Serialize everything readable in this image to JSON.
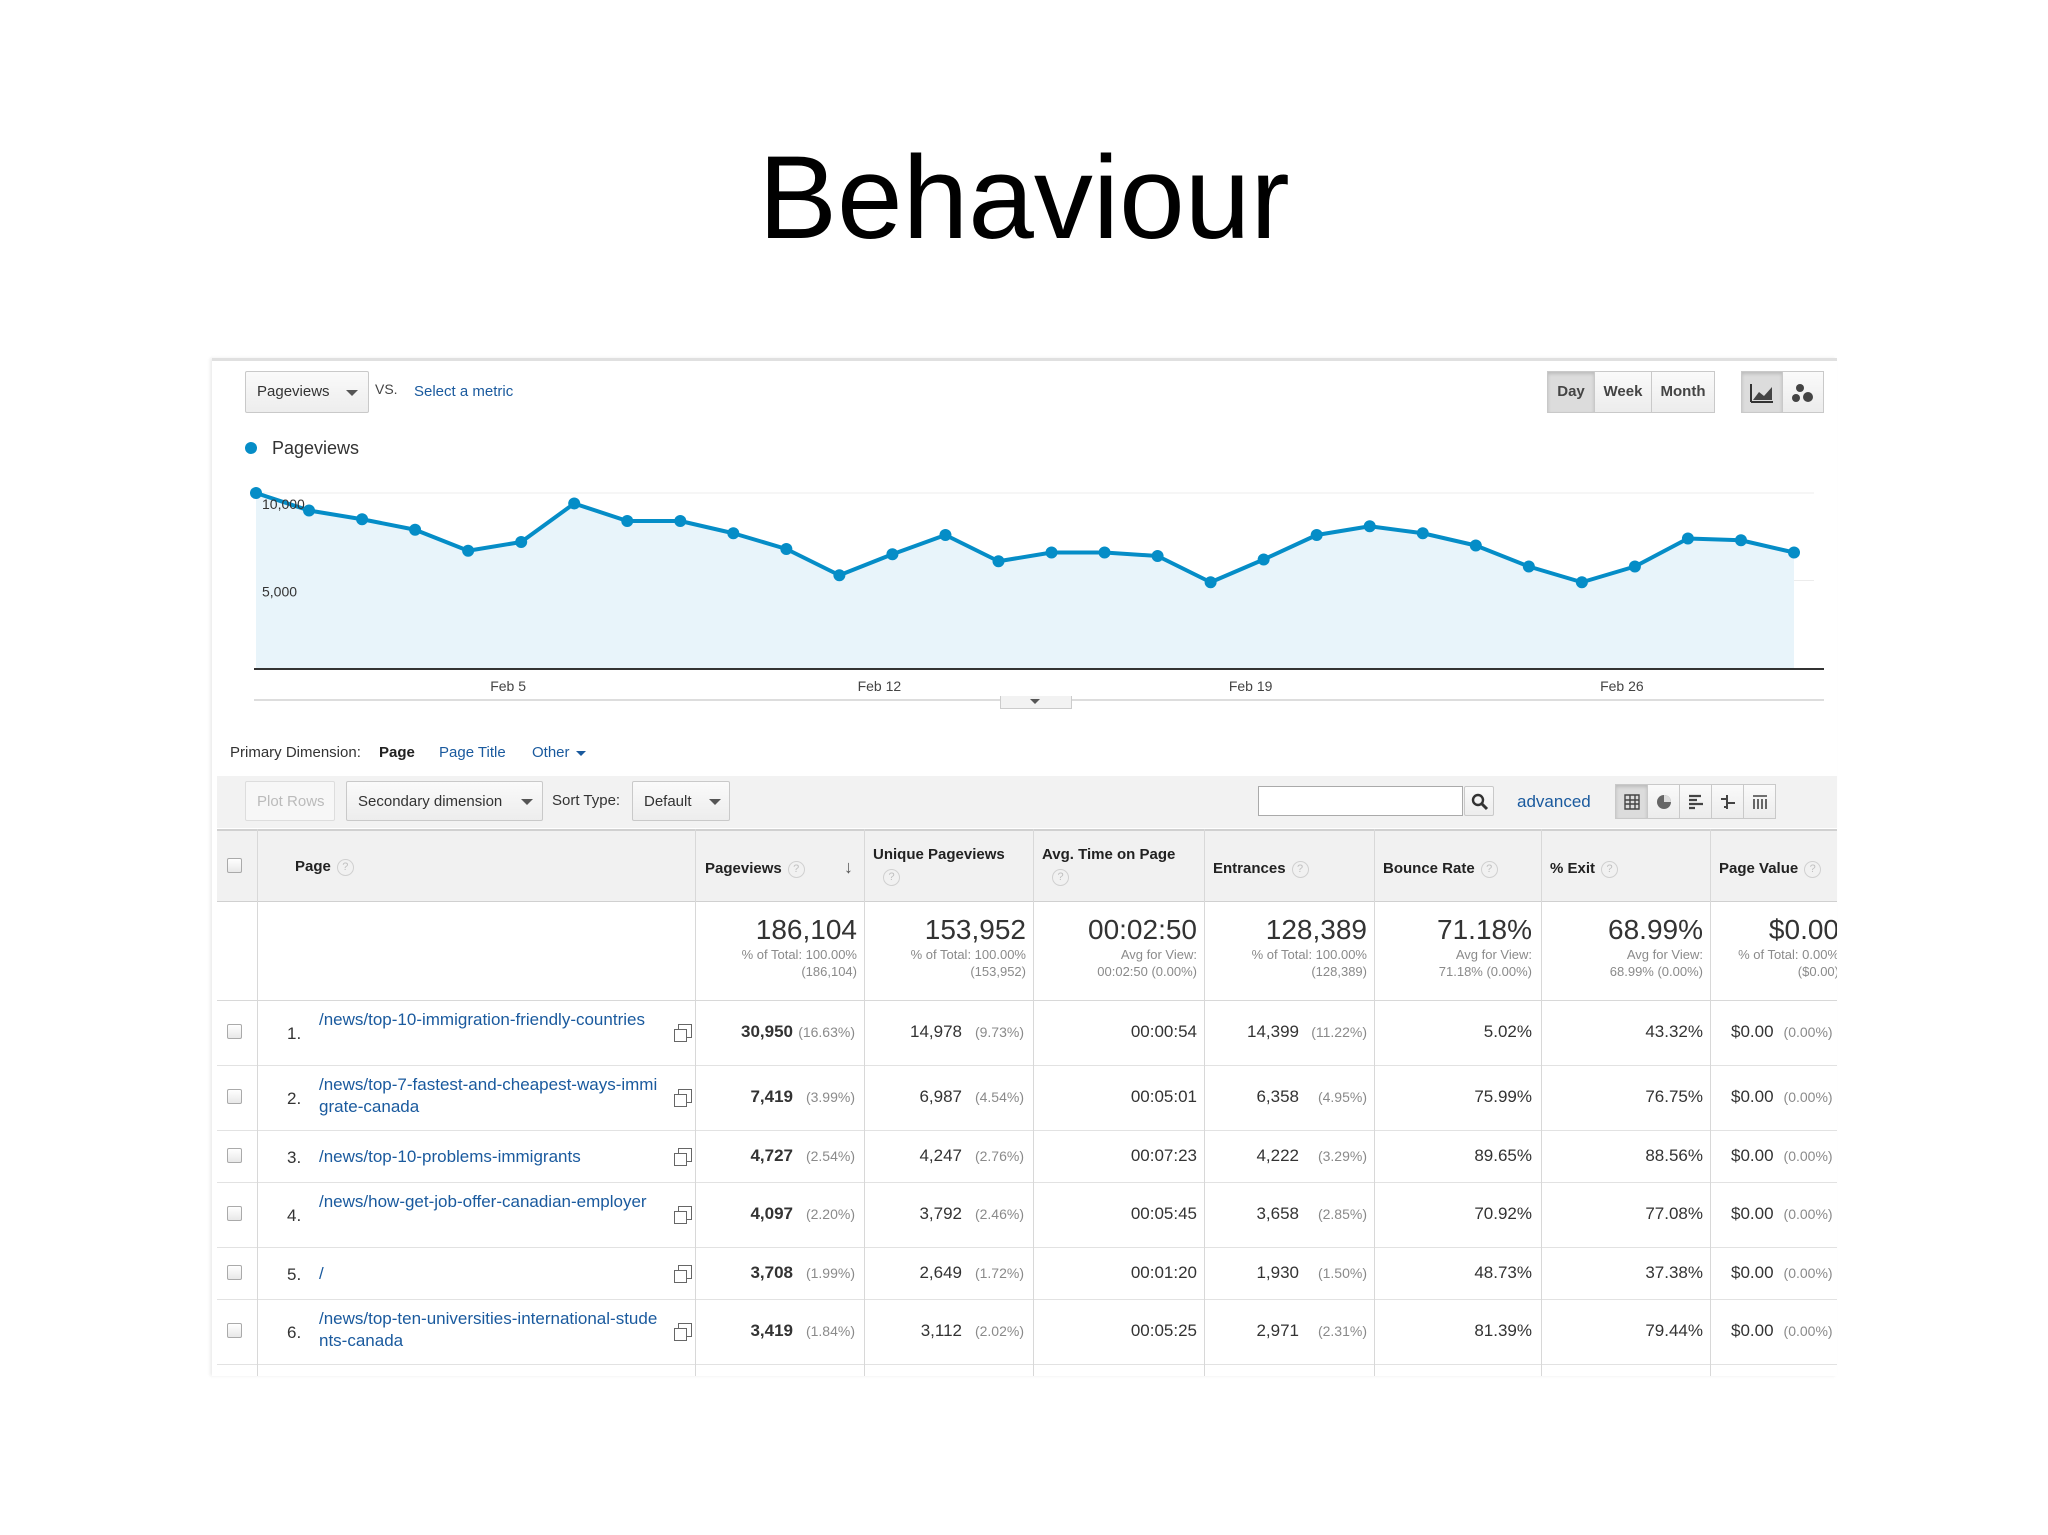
{
  "slide": {
    "title": "Behaviour"
  },
  "controls": {
    "metric_label": "Pageviews",
    "vs_label": "VS.",
    "select_metric": "Select a metric",
    "ranges": [
      "Day",
      "Week",
      "Month"
    ],
    "active_range": "Day",
    "icons": [
      "line-chart-icon",
      "motion-chart-icon"
    ]
  },
  "chart_data": {
    "type": "area",
    "series": [
      {
        "name": "Pageviews",
        "values": [
          10000,
          9000,
          8500,
          7900,
          6700,
          7200,
          9400,
          8400,
          8400,
          7700,
          6800,
          5300,
          6500,
          7600,
          6100,
          6600,
          6600,
          6400,
          4900,
          6200,
          7600,
          8100,
          7700,
          7000,
          5800,
          4900,
          5800,
          7400,
          7300,
          6600
        ]
      }
    ],
    "color": "#058dc7",
    "fill": "#e8f4fa",
    "yticks": [
      {
        "value": 10000,
        "label": "10,000"
      },
      {
        "value": 5000,
        "label": "5,000"
      }
    ],
    "xticks": [
      {
        "index": 5,
        "label": "Feb 5"
      },
      {
        "index": 12,
        "label": "Feb 12"
      },
      {
        "index": 19,
        "label": "Feb 19"
      },
      {
        "index": 26,
        "label": "Feb 26"
      }
    ],
    "ylim": [
      0,
      10000
    ],
    "grid": true,
    "legend": "top-left"
  },
  "dimension": {
    "label": "Primary Dimension:",
    "options": [
      "Page",
      "Page Title",
      "Other"
    ],
    "active": "Page"
  },
  "toolbar": {
    "plot_rows": "Plot Rows",
    "secondary_dimension": "Secondary dimension",
    "sort_type_label": "Sort Type:",
    "sort_type_value": "Default",
    "search_value": "",
    "advanced": "advanced",
    "view_icons": [
      "table-view-icon",
      "pie-view-icon",
      "bar-view-icon",
      "comparison-view-icon",
      "pivot-view-icon"
    ]
  },
  "table": {
    "headers": [
      "Page",
      "Pageviews",
      "Unique Pageviews",
      "Avg. Time on Page",
      "Entrances",
      "Bounce Rate",
      "% Exit",
      "Page Value"
    ],
    "help_mark": "?",
    "totals": [
      {
        "big": "186,104",
        "line1": "% of Total: 100.00%",
        "line2": "(186,104)"
      },
      {
        "big": "153,952",
        "line1": "% of Total: 100.00%",
        "line2": "(153,952)"
      },
      {
        "big": "00:02:50",
        "line1": "Avg for View:",
        "line2": "00:02:50 (0.00%)"
      },
      {
        "big": "128,389",
        "line1": "% of Total: 100.00%",
        "line2": "(128,389)"
      },
      {
        "big": "71.18%",
        "line1": "Avg for View:",
        "line2": "71.18% (0.00%)"
      },
      {
        "big": "68.99%",
        "line1": "Avg for View:",
        "line2": "68.99% (0.00%)"
      },
      {
        "big": "$0.00",
        "line1": "% of Total: 0.00%",
        "line2": "($0.00)"
      }
    ],
    "rows": [
      {
        "idx": "1.",
        "page": "/news/top-10-immigration-friendly-countries",
        "pageviews": "30,950",
        "pageviews_pct": "(16.63%)",
        "unique": "14,978",
        "unique_pct": "(9.73%)",
        "avg_time": "00:00:54",
        "entrances": "14,399",
        "entrances_pct": "(11.22%)",
        "bounce": "5.02%",
        "exit": "43.32%",
        "value": "$0.00",
        "value_pct": "(0.00%)"
      },
      {
        "idx": "2.",
        "page": "/news/top-7-fastest-and-cheapest-ways-immigrate-canada",
        "pageviews": "7,419",
        "pageviews_pct": "(3.99%)",
        "unique": "6,987",
        "unique_pct": "(4.54%)",
        "avg_time": "00:05:01",
        "entrances": "6,358",
        "entrances_pct": "(4.95%)",
        "bounce": "75.99%",
        "exit": "76.75%",
        "value": "$0.00",
        "value_pct": "(0.00%)"
      },
      {
        "idx": "3.",
        "page": "/news/top-10-problems-immigrants",
        "pageviews": "4,727",
        "pageviews_pct": "(2.54%)",
        "unique": "4,247",
        "unique_pct": "(2.76%)",
        "avg_time": "00:07:23",
        "entrances": "4,222",
        "entrances_pct": "(3.29%)",
        "bounce": "89.65%",
        "exit": "88.56%",
        "value": "$0.00",
        "value_pct": "(0.00%)"
      },
      {
        "idx": "4.",
        "page": "/news/how-get-job-offer-canadian-employer",
        "pageviews": "4,097",
        "pageviews_pct": "(2.20%)",
        "unique": "3,792",
        "unique_pct": "(2.46%)",
        "avg_time": "00:05:45",
        "entrances": "3,658",
        "entrances_pct": "(2.85%)",
        "bounce": "70.92%",
        "exit": "77.08%",
        "value": "$0.00",
        "value_pct": "(0.00%)"
      },
      {
        "idx": "5.",
        "page": "/",
        "pageviews": "3,708",
        "pageviews_pct": "(1.99%)",
        "unique": "2,649",
        "unique_pct": "(1.72%)",
        "avg_time": "00:01:20",
        "entrances": "1,930",
        "entrances_pct": "(1.50%)",
        "bounce": "48.73%",
        "exit": "37.38%",
        "value": "$0.00",
        "value_pct": "(0.00%)"
      },
      {
        "idx": "6.",
        "page": "/news/top-ten-universities-international-students-canada",
        "pageviews": "3,419",
        "pageviews_pct": "(1.84%)",
        "unique": "3,112",
        "unique_pct": "(2.02%)",
        "avg_time": "00:05:25",
        "entrances": "2,971",
        "entrances_pct": "(2.31%)",
        "bounce": "81.39%",
        "exit": "79.44%",
        "value": "$0.00",
        "value_pct": "(0.00%)"
      }
    ]
  }
}
